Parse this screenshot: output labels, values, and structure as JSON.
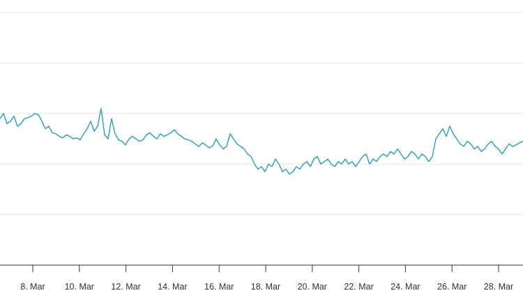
{
  "chart_data": {
    "type": "line",
    "title": "",
    "xlabel": "",
    "ylabel": "",
    "grid": true,
    "legend": "none",
    "line_color": "#3aa0b4",
    "grid_color": "#e6e6e6",
    "axis_color": "#333333",
    "x_tick_labels": [
      "8. Mar",
      "10. Mar",
      "12. Mar",
      "14. Mar",
      "16. Mar",
      "18. Mar",
      "20. Mar",
      "22. Mar",
      "24. Mar",
      "26. Mar",
      "28. Mar"
    ],
    "y_gridlines": [
      0,
      1,
      2,
      3,
      4,
      5
    ],
    "ylim": [
      0,
      5
    ],
    "series": [
      {
        "values": [
          2.9,
          3.0,
          2.8,
          2.85,
          2.95,
          2.75,
          2.8,
          2.9,
          2.92,
          2.95,
          3.0,
          2.98,
          2.85,
          2.7,
          2.75,
          2.62,
          2.6,
          2.55,
          2.52,
          2.58,
          2.55,
          2.5,
          2.52,
          2.48,
          2.6,
          2.7,
          2.85,
          2.65,
          2.75,
          3.1,
          2.58,
          2.5,
          2.9,
          2.6,
          2.48,
          2.45,
          2.38,
          2.5,
          2.55,
          2.5,
          2.45,
          2.48,
          2.58,
          2.62,
          2.55,
          2.5,
          2.6,
          2.55,
          2.58,
          2.62,
          2.68,
          2.6,
          2.55,
          2.5,
          2.48,
          2.45,
          2.4,
          2.35,
          2.42,
          2.38,
          2.32,
          2.36,
          2.5,
          2.38,
          2.3,
          2.35,
          2.6,
          2.5,
          2.4,
          2.35,
          2.3,
          2.2,
          2.15,
          2.0,
          1.9,
          1.95,
          1.85,
          2.0,
          1.95,
          2.1,
          2.0,
          1.85,
          1.9,
          1.8,
          1.85,
          1.95,
          1.9,
          2.0,
          2.05,
          1.95,
          2.1,
          2.15,
          2.0,
          2.05,
          2.1,
          2.0,
          1.95,
          2.05,
          2.0,
          2.1,
          2.0,
          2.05,
          1.95,
          2.05,
          2.15,
          2.2,
          2.0,
          2.1,
          2.05,
          2.15,
          2.2,
          2.15,
          2.25,
          2.2,
          2.3,
          2.2,
          2.1,
          2.15,
          2.25,
          2.2,
          2.1,
          2.2,
          2.15,
          2.05,
          2.15,
          2.5,
          2.6,
          2.7,
          2.55,
          2.75,
          2.6,
          2.5,
          2.4,
          2.35,
          2.45,
          2.4,
          2.3,
          2.35,
          2.25,
          2.3,
          2.4,
          2.45,
          2.35,
          2.3,
          2.2,
          2.3,
          2.4,
          2.35,
          2.38,
          2.42,
          2.45
        ]
      }
    ]
  }
}
